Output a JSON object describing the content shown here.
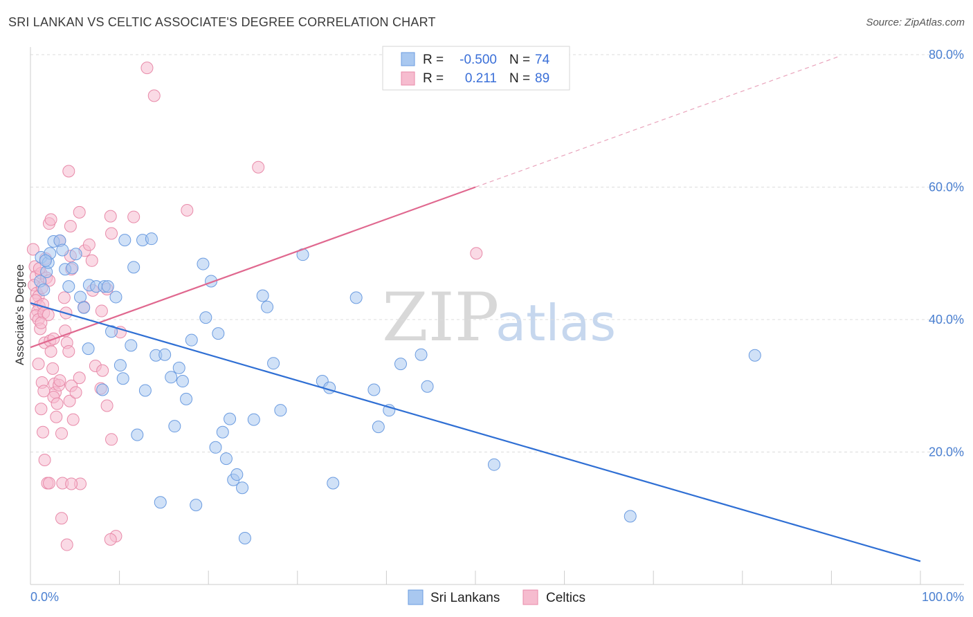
{
  "header": {
    "title": "SRI LANKAN VS CELTIC ASSOCIATE'S DEGREE CORRELATION CHART",
    "source": "Source: ZipAtlas.com"
  },
  "legend": {
    "rows": [
      {
        "r_label": "R =",
        "r_value": "-0.500",
        "n_label": "N =",
        "n_value": "74"
      },
      {
        "r_label": "R =",
        "r_value": "0.211",
        "n_label": "N =",
        "n_value": "89"
      }
    ]
  },
  "bottom_legend": {
    "sri": "Sri Lankans",
    "celtic": "Celtics"
  },
  "watermark": {
    "zip": "ZIP",
    "atlas": "atlas"
  },
  "chart_data": {
    "type": "scatter",
    "ylabel": "Associate's Degree",
    "xlim": [
      0,
      100
    ],
    "ylim": [
      0,
      80
    ],
    "x_tick_labels": {
      "min": "0.0%",
      "max": "100.0%"
    },
    "y_tick_labels": [
      "20.0%",
      "40.0%",
      "60.0%",
      "80.0%"
    ],
    "y_tick_values": [
      20,
      40,
      60,
      80
    ],
    "grid": true,
    "legend_placement": "top-center",
    "colors": {
      "sri_fill": "#a9c8f0",
      "sri_stroke": "#6a9be0",
      "sri_line": "#2f6fd4",
      "celtic_fill": "#f6bccf",
      "celtic_stroke": "#e88aa9",
      "celtic_line": "#e0688f"
    },
    "series": [
      {
        "name": "Sri Lankans",
        "r": -0.5,
        "n": 74,
        "trend": {
          "x": [
            0,
            100
          ],
          "y": [
            42.5,
            3.5
          ]
        },
        "points": [
          [
            1.2,
            49.4
          ],
          [
            1.8,
            47.2
          ],
          [
            2.0,
            48.6
          ],
          [
            1.1,
            45.8
          ],
          [
            1.5,
            44.5
          ],
          [
            2.2,
            50.0
          ],
          [
            1.7,
            48.9
          ],
          [
            2.6,
            51.8
          ],
          [
            3.3,
            51.9
          ],
          [
            3.6,
            50.5
          ],
          [
            3.9,
            47.6
          ],
          [
            4.3,
            45.0
          ],
          [
            4.7,
            47.8
          ],
          [
            5.1,
            49.9
          ],
          [
            5.6,
            43.4
          ],
          [
            6.0,
            41.8
          ],
          [
            6.6,
            45.2
          ],
          [
            7.4,
            45.0
          ],
          [
            8.3,
            45.0
          ],
          [
            8.7,
            45.0
          ],
          [
            9.1,
            38.2
          ],
          [
            9.6,
            43.4
          ],
          [
            10.6,
            52.0
          ],
          [
            11.6,
            47.9
          ],
          [
            12.6,
            52.0
          ],
          [
            13.6,
            52.2
          ],
          [
            6.5,
            35.6
          ],
          [
            10.1,
            33.1
          ],
          [
            10.4,
            31.1
          ],
          [
            11.3,
            36.1
          ],
          [
            8.1,
            29.4
          ],
          [
            12.9,
            29.3
          ],
          [
            14.1,
            34.6
          ],
          [
            15.1,
            34.7
          ],
          [
            15.8,
            31.3
          ],
          [
            16.7,
            32.7
          ],
          [
            17.1,
            30.7
          ],
          [
            17.5,
            28.0
          ],
          [
            18.1,
            36.9
          ],
          [
            19.4,
            48.4
          ],
          [
            19.7,
            40.3
          ],
          [
            20.3,
            45.8
          ],
          [
            21.1,
            37.9
          ],
          [
            12.0,
            22.6
          ],
          [
            16.2,
            23.9
          ],
          [
            20.8,
            20.7
          ],
          [
            21.6,
            23.0
          ],
          [
            22.0,
            19.0
          ],
          [
            22.4,
            25.0
          ],
          [
            22.8,
            15.8
          ],
          [
            23.2,
            16.6
          ],
          [
            23.8,
            14.6
          ],
          [
            24.1,
            7.0
          ],
          [
            25.1,
            24.9
          ],
          [
            26.1,
            43.6
          ],
          [
            26.6,
            41.9
          ],
          [
            27.3,
            33.4
          ],
          [
            28.1,
            26.3
          ],
          [
            30.6,
            49.8
          ],
          [
            32.8,
            30.7
          ],
          [
            33.6,
            29.7
          ],
          [
            34.0,
            15.3
          ],
          [
            36.6,
            43.3
          ],
          [
            38.6,
            29.4
          ],
          [
            39.1,
            23.8
          ],
          [
            40.3,
            26.3
          ],
          [
            41.6,
            33.3
          ],
          [
            43.9,
            34.7
          ],
          [
            44.6,
            29.9
          ],
          [
            52.1,
            18.1
          ],
          [
            67.4,
            10.3
          ],
          [
            81.4,
            34.6
          ],
          [
            14.6,
            12.4
          ],
          [
            18.6,
            12.0
          ]
        ]
      },
      {
        "name": "Celtics",
        "r": 0.211,
        "n": 89,
        "trend": {
          "x": [
            0,
            50
          ],
          "y": [
            35.8,
            60.0
          ]
        },
        "trend_dashed": {
          "x": [
            50,
            91
          ],
          "y": [
            60.0,
            79.8
          ]
        },
        "points": [
          [
            0.3,
            50.6
          ],
          [
            0.5,
            48.0
          ],
          [
            0.6,
            46.5
          ],
          [
            0.4,
            45.2
          ],
          [
            0.7,
            44.0
          ],
          [
            0.9,
            43.5
          ],
          [
            0.6,
            42.9
          ],
          [
            1.0,
            42.0
          ],
          [
            0.8,
            41.3
          ],
          [
            0.6,
            40.6
          ],
          [
            0.9,
            40.0
          ],
          [
            1.2,
            47.0
          ],
          [
            1.3,
            44.8
          ],
          [
            1.4,
            42.3
          ],
          [
            1.5,
            41.0
          ],
          [
            1.1,
            38.6
          ],
          [
            1.6,
            36.5
          ],
          [
            0.9,
            33.3
          ],
          [
            1.3,
            30.5
          ],
          [
            1.5,
            29.2
          ],
          [
            1.2,
            26.5
          ],
          [
            1.4,
            23.0
          ],
          [
            1.6,
            18.8
          ],
          [
            1.9,
            15.3
          ],
          [
            2.2,
            36.8
          ],
          [
            2.3,
            35.2
          ],
          [
            2.6,
            37.1
          ],
          [
            2.5,
            32.6
          ],
          [
            2.7,
            30.3
          ],
          [
            2.8,
            29.0
          ],
          [
            2.6,
            28.3
          ],
          [
            2.9,
            25.3
          ],
          [
            3.0,
            27.3
          ],
          [
            3.2,
            30.1
          ],
          [
            3.3,
            30.8
          ],
          [
            3.5,
            22.8
          ],
          [
            3.6,
            15.3
          ],
          [
            3.9,
            38.3
          ],
          [
            4.0,
            41.0
          ],
          [
            4.1,
            36.5
          ],
          [
            4.3,
            35.2
          ],
          [
            4.6,
            30.0
          ],
          [
            4.4,
            27.7
          ],
          [
            4.8,
            24.9
          ],
          [
            5.1,
            29.0
          ],
          [
            5.5,
            31.2
          ],
          [
            2.1,
            54.5
          ],
          [
            2.3,
            55.1
          ],
          [
            3.3,
            51.9
          ],
          [
            4.5,
            49.6
          ],
          [
            4.6,
            47.6
          ],
          [
            4.3,
            62.4
          ],
          [
            4.5,
            54.1
          ],
          [
            5.5,
            56.2
          ],
          [
            6.1,
            50.4
          ],
          [
            6.6,
            51.3
          ],
          [
            6.9,
            48.9
          ],
          [
            7.0,
            44.4
          ],
          [
            7.3,
            33.0
          ],
          [
            7.9,
            29.6
          ],
          [
            8.1,
            32.3
          ],
          [
            8.6,
            27.0
          ],
          [
            5.6,
            15.2
          ],
          [
            4.6,
            15.2
          ],
          [
            2.1,
            15.3
          ],
          [
            3.5,
            10.0
          ],
          [
            4.1,
            6.0
          ],
          [
            6.0,
            41.9
          ],
          [
            8.0,
            41.3
          ],
          [
            8.6,
            44.6
          ],
          [
            9.0,
            55.6
          ],
          [
            9.1,
            53.0
          ],
          [
            10.1,
            38.1
          ],
          [
            11.6,
            55.5
          ],
          [
            13.1,
            78.0
          ],
          [
            13.9,
            73.8
          ],
          [
            17.6,
            56.5
          ],
          [
            25.6,
            63.0
          ],
          [
            50.1,
            50.0
          ],
          [
            9.1,
            21.9
          ],
          [
            9.6,
            7.3
          ],
          [
            9.0,
            6.8
          ],
          [
            1.0,
            47.7
          ],
          [
            1.8,
            46.3
          ],
          [
            1.7,
            49.2
          ],
          [
            2.1,
            45.9
          ],
          [
            2.0,
            40.7
          ],
          [
            1.2,
            39.5
          ],
          [
            3.8,
            43.3
          ]
        ]
      }
    ]
  }
}
